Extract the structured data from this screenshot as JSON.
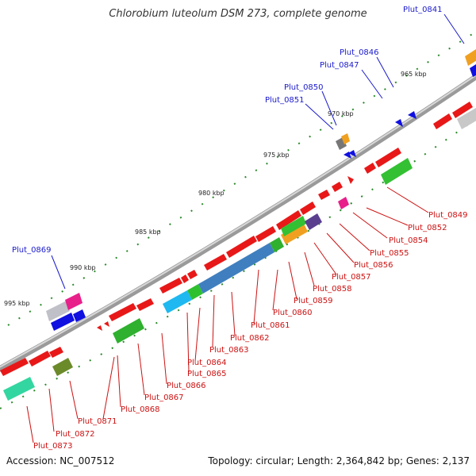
{
  "title": "Chlorobium luteolum DSM 273, complete genome",
  "footer": {
    "accession": "Accession: NC_007512",
    "summary": "Topology: circular; Length: 2,364,842 bp; Genes: 2,137"
  },
  "colors": {
    "forward_gene": "#e81818",
    "reverse_gene": "#1010e0",
    "backbone": "#888888",
    "tick": "#2a8a2a",
    "blue_label": "#1a1acc",
    "red_label": "#cc1111"
  },
  "scale_labels": [
    "965 kbp",
    "970 kbp",
    "975 kbp",
    "980 kbp",
    "985 kbp",
    "990 kbp",
    "995 kbp"
  ],
  "blue_labels": [
    "Plut_0841",
    "Plut_0846",
    "Plut_0847",
    "Plut_0850",
    "Plut_0851",
    "Plut_0869"
  ],
  "red_labels": [
    "Plut_0849",
    "Plut_0852",
    "Plut_0854",
    "Plut_0855",
    "Plut_0856",
    "Plut_0857",
    "Plut_0858",
    "Plut_0859",
    "Plut_0860",
    "Plut_0861",
    "Plut_0862",
    "Plut_0863",
    "Plut_0864",
    "Plut_0865",
    "Plut_0866",
    "Plut_0867",
    "Plut_0868",
    "Plut_0871",
    "Plut_0872",
    "Plut_0873"
  ]
}
